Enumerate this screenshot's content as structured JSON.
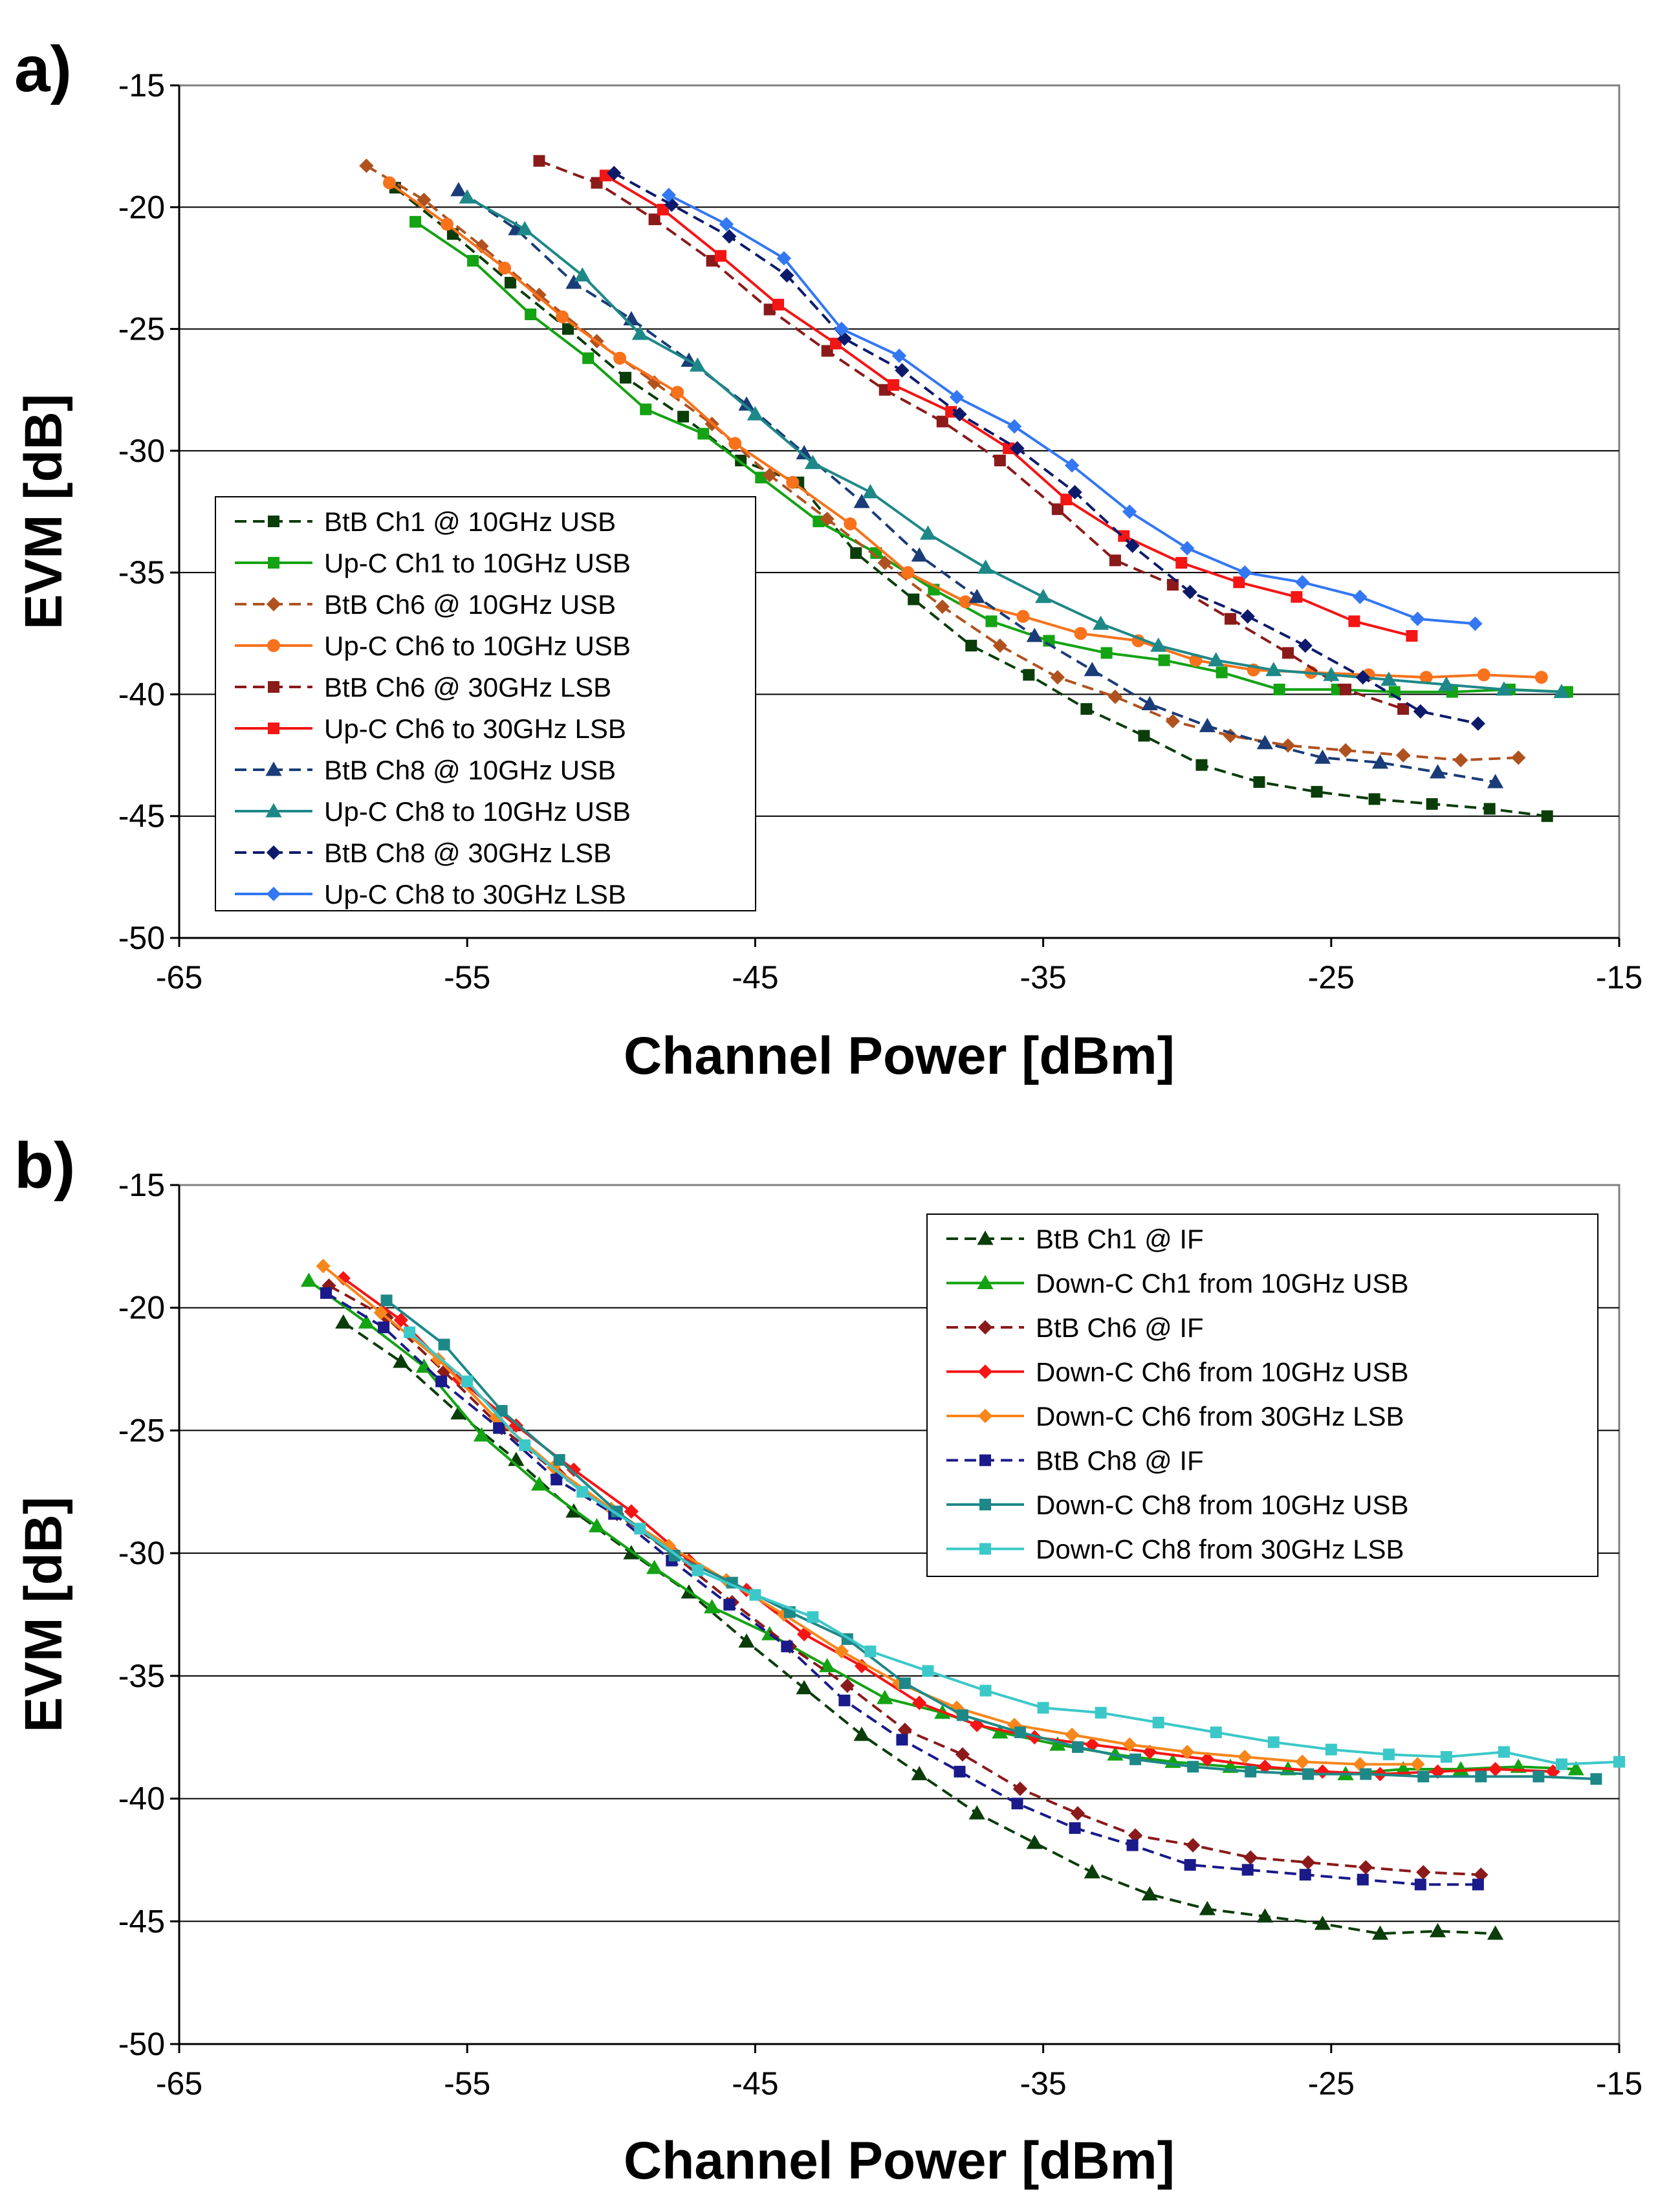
{
  "panels": [
    {
      "label": "a)"
    },
    {
      "label": "b)"
    }
  ],
  "chart_data": [
    {
      "type": "line",
      "xlabel": "Channel Power [dBm]",
      "ylabel": "EVM [dB]",
      "xlim": [
        -65,
        -15
      ],
      "ylim": [
        -50,
        -15
      ],
      "xticks": [
        -65,
        -55,
        -45,
        -35,
        -25,
        -15
      ],
      "yticks": [
        -15,
        -20,
        -25,
        -30,
        -35,
        -40,
        -45,
        -50
      ],
      "grid": "horizontal",
      "legend_position": "lower-left",
      "series": [
        {
          "name": "BtB Ch1 @ 10GHz USB",
          "color": "#0b3d0b",
          "dash": true,
          "marker": "square",
          "x": [
            -57.5,
            -55.5,
            -53.5,
            -51.5,
            -49.5,
            -47.5,
            -45.5,
            -43.5,
            -41.5,
            -39.5,
            -37.5,
            -35.5,
            -33.5,
            -31.5,
            -29.5,
            -27.5,
            -25.5,
            -23.5,
            -21.5,
            -19.5,
            -17.5
          ],
          "y": [
            -19.2,
            -21.1,
            -23.1,
            -25.0,
            -27.0,
            -28.6,
            -30.4,
            -31.3,
            -34.2,
            -36.1,
            -38.0,
            -39.2,
            -40.6,
            -41.7,
            -42.9,
            -43.6,
            -44.0,
            -44.3,
            -44.5,
            -44.7,
            -45.0
          ]
        },
        {
          "name": "Up-C Ch1 to 10GHz USB",
          "color": "#13a313",
          "dash": false,
          "marker": "square",
          "x": [
            -56.8,
            -54.8,
            -52.8,
            -50.8,
            -48.8,
            -46.8,
            -44.8,
            -42.8,
            -40.8,
            -38.8,
            -36.8,
            -34.8,
            -32.8,
            -30.8,
            -28.8,
            -26.8,
            -24.8,
            -22.8,
            -20.8,
            -18.8,
            -16.8
          ],
          "y": [
            -20.6,
            -22.2,
            -24.4,
            -26.2,
            -28.3,
            -29.3,
            -31.1,
            -32.9,
            -34.2,
            -35.7,
            -37.0,
            -37.8,
            -38.3,
            -38.6,
            -39.1,
            -39.8,
            -39.8,
            -39.9,
            -39.9,
            -39.8,
            -39.9
          ]
        },
        {
          "name": "BtB Ch6 @ 10GHz USB",
          "color": "#b0521f",
          "dash": true,
          "marker": "diamond",
          "x": [
            -58.5,
            -56.5,
            -54.5,
            -52.5,
            -50.5,
            -48.5,
            -46.5,
            -44.5,
            -42.5,
            -40.5,
            -38.5,
            -36.5,
            -34.5,
            -32.5,
            -30.5,
            -28.5,
            -26.5,
            -24.5,
            -22.5,
            -20.5,
            -18.5
          ],
          "y": [
            -18.3,
            -19.7,
            -21.6,
            -23.6,
            -25.5,
            -27.2,
            -28.9,
            -31.0,
            -32.8,
            -34.6,
            -36.4,
            -38.0,
            -39.3,
            -40.1,
            -41.1,
            -41.7,
            -42.1,
            -42.3,
            -42.5,
            -42.7,
            -42.6
          ]
        },
        {
          "name": "Up-C Ch6 to 10GHz USB",
          "color": "#f7721b",
          "dash": false,
          "marker": "circle",
          "x": [
            -57.7,
            -55.7,
            -53.7,
            -51.7,
            -49.7,
            -47.7,
            -45.7,
            -43.7,
            -41.7,
            -39.7,
            -37.7,
            -35.7,
            -33.7,
            -31.7,
            -29.7,
            -27.7,
            -25.7,
            -23.7,
            -21.7,
            -19.7,
            -17.7
          ],
          "y": [
            -19.0,
            -20.7,
            -22.5,
            -24.5,
            -26.2,
            -27.6,
            -29.7,
            -31.3,
            -33.0,
            -35.0,
            -36.2,
            -36.8,
            -37.5,
            -37.8,
            -38.6,
            -39.0,
            -39.1,
            -39.2,
            -39.3,
            -39.2,
            -39.3
          ]
        },
        {
          "name": "BtB Ch6 @ 30GHz LSB",
          "color": "#8b1a1a",
          "dash": true,
          "marker": "square",
          "x": [
            -52.5,
            -50.5,
            -48.5,
            -46.5,
            -44.5,
            -42.5,
            -40.5,
            -38.5,
            -36.5,
            -34.5,
            -32.5,
            -30.5,
            -28.5,
            -26.5,
            -24.5,
            -22.5
          ],
          "y": [
            -18.1,
            -19.0,
            -20.5,
            -22.2,
            -24.2,
            -25.9,
            -27.5,
            -28.8,
            -30.4,
            -32.4,
            -34.5,
            -35.5,
            -36.9,
            -38.3,
            -39.8,
            -40.6
          ]
        },
        {
          "name": "Up-C Ch6 to 30GHz LSB",
          "color": "#f41515",
          "dash": false,
          "marker": "square",
          "x": [
            -50.2,
            -48.2,
            -46.2,
            -44.2,
            -42.2,
            -40.2,
            -38.2,
            -36.2,
            -34.2,
            -32.2,
            -30.2,
            -28.2,
            -26.2,
            -24.2,
            -22.2
          ],
          "y": [
            -18.7,
            -20.1,
            -22.0,
            -24.0,
            -25.6,
            -27.3,
            -28.4,
            -29.9,
            -32.0,
            -33.5,
            -34.6,
            -35.4,
            -36.0,
            -37.0,
            -37.6
          ]
        },
        {
          "name": "BtB Ch8 @ 10GHz USB",
          "color": "#1a3c78",
          "dash": true,
          "marker": "triangle",
          "x": [
            -55.3,
            -53.3,
            -51.3,
            -49.3,
            -47.3,
            -45.3,
            -43.3,
            -41.3,
            -39.3,
            -37.3,
            -35.3,
            -33.3,
            -31.3,
            -29.3,
            -27.3,
            -25.3,
            -23.3,
            -21.3,
            -19.3
          ],
          "y": [
            -19.3,
            -20.9,
            -23.1,
            -24.6,
            -26.3,
            -28.1,
            -30.1,
            -32.1,
            -34.3,
            -36.0,
            -37.6,
            -39.0,
            -40.4,
            -41.3,
            -42.0,
            -42.6,
            -42.8,
            -43.2,
            -43.6
          ]
        },
        {
          "name": "Up-C Ch8 to 10GHz USB",
          "color": "#1e8888",
          "dash": false,
          "marker": "triangle",
          "x": [
            -55.0,
            -53.0,
            -51.0,
            -49.0,
            -47.0,
            -45.0,
            -43.0,
            -41.0,
            -39.0,
            -37.0,
            -35.0,
            -33.0,
            -31.0,
            -29.0,
            -27.0,
            -25.0,
            -23.0,
            -21.0,
            -19.0,
            -17.0
          ],
          "y": [
            -19.6,
            -20.9,
            -22.8,
            -25.2,
            -26.5,
            -28.5,
            -30.5,
            -31.7,
            -33.4,
            -34.8,
            -36.0,
            -37.1,
            -38.0,
            -38.6,
            -39.0,
            -39.2,
            -39.4,
            -39.6,
            -39.8,
            -39.9
          ]
        },
        {
          "name": "BtB Ch8 @ 30GHz LSB",
          "color": "#0d1a6b",
          "dash": true,
          "marker": "diamond",
          "x": [
            -49.9,
            -47.9,
            -45.9,
            -43.9,
            -41.9,
            -39.9,
            -37.9,
            -35.9,
            -33.9,
            -31.9,
            -29.9,
            -27.9,
            -25.9,
            -23.9,
            -21.9,
            -19.9
          ],
          "y": [
            -18.6,
            -19.9,
            -21.2,
            -22.8,
            -25.4,
            -26.7,
            -28.5,
            -29.9,
            -31.7,
            -33.9,
            -35.8,
            -36.8,
            -38.0,
            -39.3,
            -40.7,
            -41.2
          ]
        },
        {
          "name": "Up-C Ch8 to 30GHz LSB",
          "color": "#3377f2",
          "dash": false,
          "marker": "diamond",
          "x": [
            -48.0,
            -46.0,
            -44.0,
            -42.0,
            -40.0,
            -38.0,
            -36.0,
            -34.0,
            -32.0,
            -30.0,
            -28.0,
            -26.0,
            -24.0,
            -22.0,
            -20.0
          ],
          "y": [
            -19.5,
            -20.7,
            -22.1,
            -25.0,
            -26.1,
            -27.8,
            -29.0,
            -30.6,
            -32.5,
            -34.0,
            -35.0,
            -35.4,
            -36.0,
            -36.9,
            -37.1
          ]
        }
      ]
    },
    {
      "type": "line",
      "xlabel": "Channel Power [dBm]",
      "ylabel": "EVM [dB]",
      "xlim": [
        -65,
        -15
      ],
      "ylim": [
        -50,
        -15
      ],
      "xticks": [
        -65,
        -55,
        -45,
        -35,
        -25,
        -15
      ],
      "yticks": [
        -15,
        -20,
        -25,
        -30,
        -35,
        -40,
        -45,
        -50
      ],
      "grid": "horizontal",
      "legend_position": "top-right",
      "series": [
        {
          "name": "BtB Ch1 @ IF",
          "color": "#0b3d0b",
          "dash": true,
          "marker": "triangle",
          "x": [
            -59.3,
            -57.3,
            -55.3,
            -53.3,
            -51.3,
            -49.3,
            -47.3,
            -45.3,
            -43.3,
            -41.3,
            -39.3,
            -37.3,
            -35.3,
            -33.3,
            -31.3,
            -29.3,
            -27.3,
            -25.3,
            -23.3,
            -21.3,
            -19.3
          ],
          "y": [
            -20.6,
            -22.2,
            -24.3,
            -26.2,
            -28.3,
            -30.0,
            -31.6,
            -33.6,
            -35.5,
            -37.4,
            -39.0,
            -40.6,
            -41.8,
            -43.0,
            -43.9,
            -44.5,
            -44.8,
            -45.1,
            -45.5,
            -45.4,
            -45.5
          ]
        },
        {
          "name": "Down-C Ch1 from 10GHz USB",
          "color": "#13a313",
          "dash": false,
          "marker": "triangle",
          "x": [
            -60.5,
            -58.5,
            -56.5,
            -54.5,
            -52.5,
            -50.5,
            -48.5,
            -46.5,
            -44.5,
            -42.5,
            -40.5,
            -38.5,
            -36.5,
            -34.5,
            -32.5,
            -30.5,
            -28.5,
            -26.5,
            -24.5,
            -22.5,
            -20.5,
            -18.5,
            -16.5
          ],
          "y": [
            -18.9,
            -20.6,
            -22.4,
            -25.2,
            -27.2,
            -28.9,
            -30.6,
            -32.2,
            -33.3,
            -34.6,
            -35.9,
            -36.5,
            -37.3,
            -37.8,
            -38.2,
            -38.5,
            -38.7,
            -38.8,
            -39.0,
            -38.8,
            -38.8,
            -38.7,
            -38.8
          ]
        },
        {
          "name": "BtB Ch6 @ IF",
          "color": "#8b1a1a",
          "dash": true,
          "marker": "diamond",
          "x": [
            -59.8,
            -57.8,
            -55.8,
            -53.8,
            -51.8,
            -49.8,
            -47.8,
            -45.8,
            -43.8,
            -41.8,
            -39.8,
            -37.8,
            -35.8,
            -33.8,
            -31.8,
            -29.8,
            -27.8,
            -25.8,
            -23.8,
            -21.8,
            -19.8
          ],
          "y": [
            -19.1,
            -20.4,
            -22.6,
            -24.9,
            -26.8,
            -28.4,
            -30.1,
            -32.0,
            -33.8,
            -35.4,
            -37.2,
            -38.2,
            -39.6,
            -40.6,
            -41.5,
            -41.9,
            -42.4,
            -42.6,
            -42.8,
            -43.0,
            -43.1
          ]
        },
        {
          "name": "Down-C Ch6 from 10GHz USB",
          "color": "#f41515",
          "dash": false,
          "marker": "diamond",
          "x": [
            -59.3,
            -57.3,
            -55.3,
            -53.3,
            -51.3,
            -49.3,
            -47.3,
            -45.3,
            -43.3,
            -41.3,
            -39.3,
            -37.3,
            -35.3,
            -33.3,
            -31.3,
            -29.3,
            -27.3,
            -25.3,
            -23.3,
            -21.3,
            -19.3,
            -17.3
          ],
          "y": [
            -18.8,
            -20.5,
            -22.9,
            -24.8,
            -26.6,
            -28.3,
            -30.3,
            -31.5,
            -33.3,
            -34.6,
            -36.1,
            -37.0,
            -37.5,
            -37.8,
            -38.1,
            -38.4,
            -38.7,
            -38.9,
            -39.0,
            -38.9,
            -38.8,
            -38.9
          ]
        },
        {
          "name": "Down-C Ch6 from 30GHz LSB",
          "color": "#f7861b",
          "dash": false,
          "marker": "diamond",
          "x": [
            -60.0,
            -58.0,
            -56.0,
            -54.0,
            -52.0,
            -50.0,
            -48.0,
            -46.0,
            -44.0,
            -42.0,
            -40.0,
            -38.0,
            -36.0,
            -34.0,
            -32.0,
            -30.0,
            -28.0,
            -26.0,
            -24.0,
            -22.0
          ],
          "y": [
            -18.3,
            -20.2,
            -22.1,
            -24.5,
            -26.5,
            -28.2,
            -29.7,
            -31.1,
            -32.5,
            -34.0,
            -35.3,
            -36.3,
            -37.0,
            -37.4,
            -37.8,
            -38.1,
            -38.3,
            -38.5,
            -38.6,
            -38.6
          ]
        },
        {
          "name": "BtB Ch8 @ IF",
          "color": "#1a1a8b",
          "dash": true,
          "marker": "square",
          "x": [
            -59.9,
            -57.9,
            -55.9,
            -53.9,
            -51.9,
            -49.9,
            -47.9,
            -45.9,
            -43.9,
            -41.9,
            -39.9,
            -37.9,
            -35.9,
            -33.9,
            -31.9,
            -29.9,
            -27.9,
            -25.9,
            -23.9,
            -21.9,
            -19.9
          ],
          "y": [
            -19.4,
            -20.8,
            -23.0,
            -24.9,
            -27.0,
            -28.4,
            -30.3,
            -32.1,
            -33.8,
            -36.0,
            -37.6,
            -38.9,
            -40.2,
            -41.2,
            -41.9,
            -42.7,
            -42.9,
            -43.1,
            -43.3,
            -43.5,
            -43.5
          ]
        },
        {
          "name": "Down-C Ch8 from 10GHz USB",
          "color": "#1e8888",
          "dash": false,
          "marker": "square",
          "x": [
            -57.8,
            -55.8,
            -53.8,
            -51.8,
            -49.8,
            -47.8,
            -45.8,
            -43.8,
            -41.8,
            -39.8,
            -37.8,
            -35.8,
            -33.8,
            -31.8,
            -29.8,
            -27.8,
            -25.8,
            -23.8,
            -21.8,
            -19.8,
            -17.8,
            -15.8
          ],
          "y": [
            -19.7,
            -21.5,
            -24.2,
            -26.2,
            -28.3,
            -30.1,
            -31.2,
            -32.4,
            -33.5,
            -35.3,
            -36.6,
            -37.3,
            -37.9,
            -38.4,
            -38.7,
            -38.9,
            -39.0,
            -39.0,
            -39.1,
            -39.1,
            -39.1,
            -39.2
          ]
        },
        {
          "name": "Down-C Ch8 from 30GHz LSB",
          "color": "#3cc8c8",
          "dash": false,
          "marker": "square",
          "x": [
            -57.0,
            -55.0,
            -53.0,
            -51.0,
            -49.0,
            -47.0,
            -45.0,
            -43.0,
            -41.0,
            -39.0,
            -37.0,
            -35.0,
            -33.0,
            -31.0,
            -29.0,
            -27.0,
            -25.0,
            -23.0,
            -21.0,
            -19.0,
            -17.0,
            -15.0
          ],
          "y": [
            -21.0,
            -23.0,
            -25.6,
            -27.5,
            -29.0,
            -30.7,
            -31.7,
            -32.6,
            -34.0,
            -34.8,
            -35.6,
            -36.3,
            -36.5,
            -36.9,
            -37.3,
            -37.7,
            -38.0,
            -38.2,
            -38.3,
            -38.1,
            -38.6,
            -38.5
          ]
        }
      ]
    }
  ]
}
